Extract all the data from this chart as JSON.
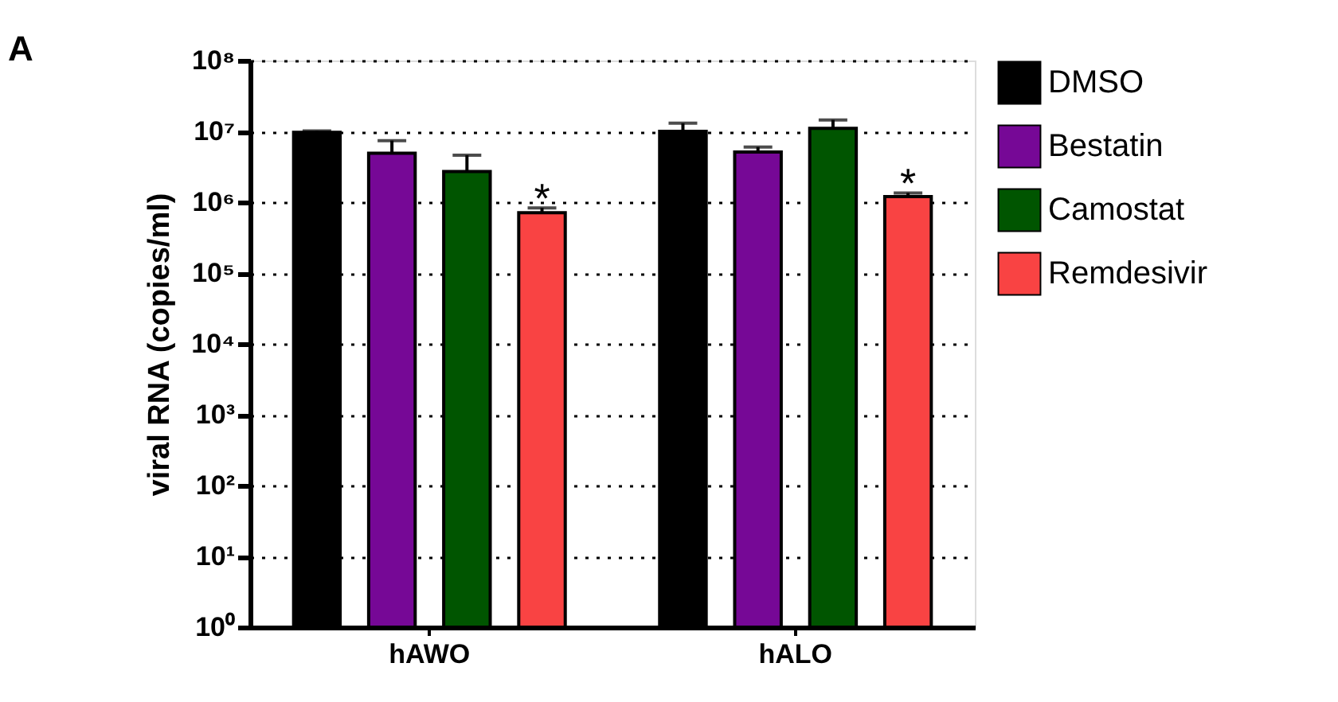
{
  "chart_data": {
    "type": "bar",
    "annotations": [
      "A"
    ],
    "ylabel": "viral RNA (copies/ml)",
    "categories": [
      "hAWO",
      "hALO"
    ],
    "series": [
      {
        "name": "DMSO",
        "color": "#000000",
        "values": [
          9700000,
          10000000
        ],
        "errors": [
          400000,
          3000000
        ]
      },
      {
        "name": "Bestatin",
        "color": "#760896",
        "values": [
          4900000,
          5100000
        ],
        "errors": [
          2500000,
          900000
        ]
      },
      {
        "name": "Camostat",
        "color": "#005500",
        "values": [
          2700000,
          11000000
        ],
        "errors": [
          1900000,
          3500000
        ]
      },
      {
        "name": "Remdesivir",
        "color": "#f94343",
        "values": [
          710000,
          1200000
        ],
        "errors": [
          120000,
          150000
        ],
        "value_labels": [
          "*",
          "*"
        ]
      }
    ],
    "log": "y",
    "ylim": [
      1,
      100000000
    ],
    "yticks": [
      {
        "value": 1,
        "label": "10⁰"
      },
      {
        "value": 10,
        "label": "10¹"
      },
      {
        "value": 100,
        "label": "10²"
      },
      {
        "value": 1000,
        "label": "10³"
      },
      {
        "value": 10000,
        "label": "10⁴"
      },
      {
        "value": 100000,
        "label": "10⁵"
      },
      {
        "value": 1000000,
        "label": "10⁶"
      },
      {
        "value": 10000000,
        "label": "10⁷"
      },
      {
        "value": 100000000,
        "label": "10⁸"
      }
    ],
    "grid": "y",
    "legend": "top right"
  }
}
